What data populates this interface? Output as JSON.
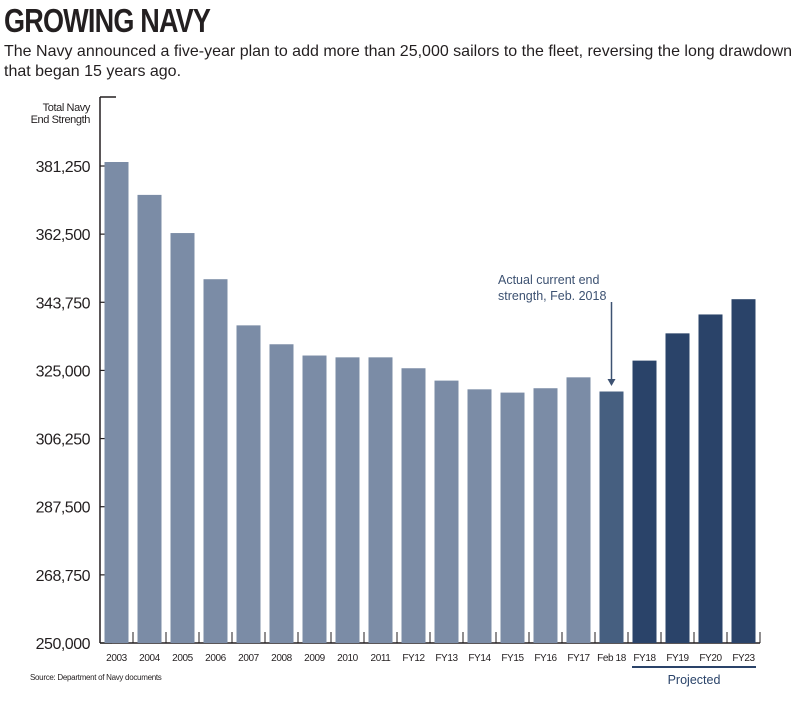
{
  "chart_data": {
    "type": "bar",
    "title": "GROWING NAVY",
    "subtitle": "The Navy announced a five-year plan to add more than 25,000 sailors to the fleet, reversing the long drawdown that began 15 years ago.",
    "ylabel": [
      "Total Navy",
      "End Strength"
    ],
    "xlabel": "",
    "ylim": [
      250000,
      390000
    ],
    "yticks": [
      250000,
      268750,
      287500,
      306250,
      325000,
      343750,
      362500,
      381250
    ],
    "ytick_labels": [
      "250,000",
      "268,750",
      "287,500",
      "306,250",
      "325,000",
      "343,750",
      "362,500",
      "381,250"
    ],
    "categories": [
      "2003",
      "2004",
      "2005",
      "2006",
      "2007",
      "2008",
      "2009",
      "2010",
      "2011",
      "FY12",
      "FY13",
      "FY14",
      "FY15",
      "FY16",
      "FY17",
      "Feb 18",
      "FY18",
      "FY19",
      "FY20",
      "FY23"
    ],
    "values": [
      382350,
      373300,
      362800,
      350100,
      337400,
      332200,
      329100,
      328600,
      328600,
      325600,
      322200,
      319800,
      318900,
      320100,
      323100,
      319200,
      327700,
      335200,
      340400,
      344600
    ],
    "bar_kinds": [
      "actual",
      "actual",
      "actual",
      "actual",
      "actual",
      "actual",
      "actual",
      "actual",
      "actual",
      "actual",
      "actual",
      "actual",
      "actual",
      "actual",
      "actual",
      "current",
      "projected",
      "projected",
      "projected",
      "projected"
    ],
    "colors": {
      "actual": "#7b8ca6",
      "current": "#465f80",
      "projected": "#2a4369",
      "annotation": "#3d5272"
    },
    "grid": false,
    "annotation": {
      "category": "Feb 18",
      "lines": [
        "Actual current end",
        "strength, Feb. 2018"
      ]
    },
    "projected_label": "Projected",
    "source": "Source: Department of Navy documents"
  }
}
